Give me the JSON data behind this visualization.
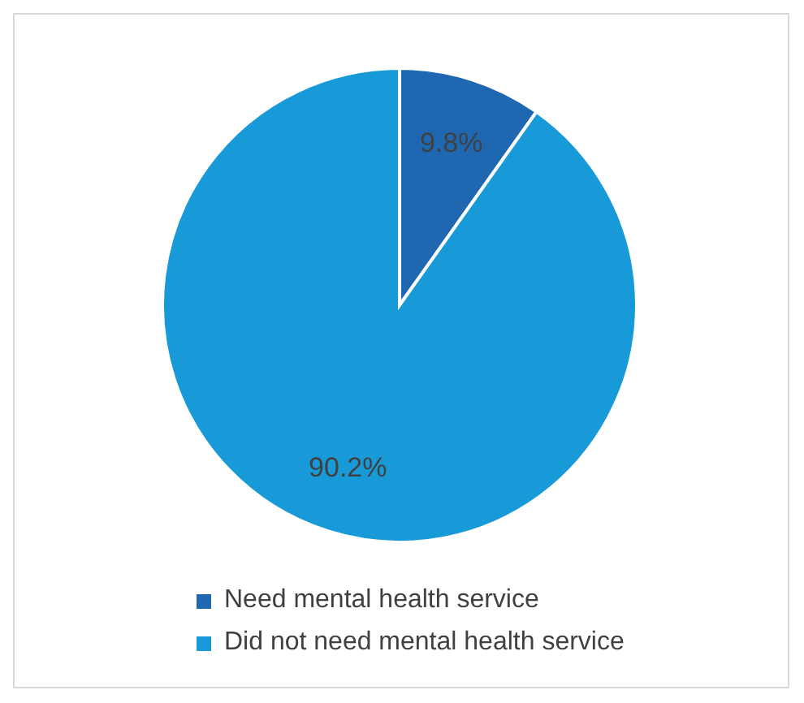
{
  "chart_data": {
    "type": "pie",
    "categories": [
      "Need mental health service",
      "Did not need mental health service"
    ],
    "values": [
      9.8,
      90.2
    ],
    "colors": [
      "#1f67b1",
      "#179ad7"
    ],
    "legend": "bottom",
    "value_labels": [
      "9.8%",
      "90.2%"
    ]
  }
}
